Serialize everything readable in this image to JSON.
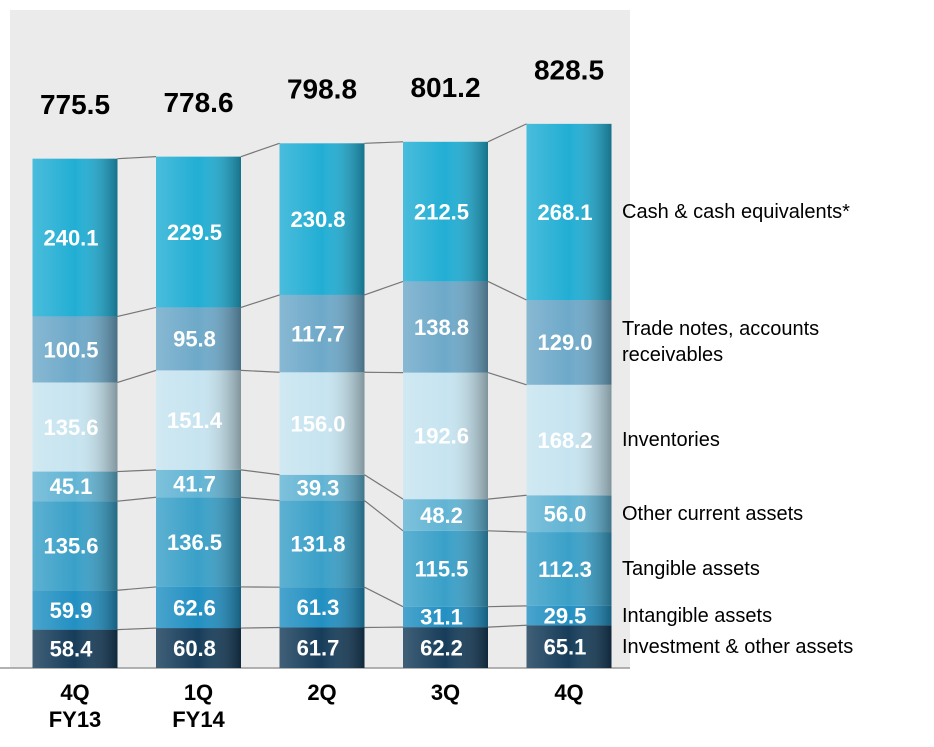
{
  "chart_data": {
    "type": "stacked-bar",
    "categories": [
      "4Q FY13",
      "1Q FY14",
      "2Q",
      "3Q",
      "4Q"
    ],
    "totals": [
      775.5,
      778.6,
      798.8,
      801.2,
      828.5
    ],
    "ylim": [
      0,
      1000
    ],
    "series": [
      {
        "name": "Investment & other assets",
        "color": "#173d5a",
        "values": [
          58.4,
          60.8,
          61.7,
          62.2,
          65.1
        ],
        "value_labels": [
          "58.4",
          "60.8",
          "61.7",
          "62.2",
          "65.1"
        ]
      },
      {
        "name": "Intangible assets",
        "color": "#2290c2",
        "values": [
          59.9,
          62.6,
          61.3,
          31.1,
          29.5
        ],
        "value_labels": [
          "59.9",
          "62.6",
          "61.3",
          "31.1",
          "29.5"
        ]
      },
      {
        "name": "Tangible assets",
        "color": "#3aa0c8",
        "values": [
          135.6,
          136.5,
          131.8,
          115.5,
          112.3
        ],
        "value_labels": [
          "135.6",
          "136.5",
          "131.8",
          "115.5",
          "112.3"
        ]
      },
      {
        "name": "Other current assets",
        "color": "#62b4d4",
        "values": [
          45.1,
          41.7,
          39.3,
          48.2,
          56.0
        ],
        "value_labels": [
          "45.1",
          "41.7",
          "39.3",
          "48.2",
          "56.0"
        ]
      },
      {
        "name": "Inventories",
        "color": "#c6e4f0",
        "values": [
          135.6,
          151.4,
          156.0,
          192.6,
          168.2
        ],
        "value_labels": [
          "135.6",
          "151.4",
          "156.0",
          "192.6",
          "168.2"
        ]
      },
      {
        "name": "Trade notes, accounts receivables",
        "color": "#6ea9c9",
        "values": [
          100.5,
          95.8,
          117.7,
          138.8,
          129.0
        ],
        "value_labels": [
          "100.5",
          "95.8",
          "117.7",
          "138.8",
          "129.0"
        ]
      },
      {
        "name": "Cash & cash equivalents*",
        "color": "#22aed4",
        "values": [
          240.1,
          229.5,
          230.8,
          212.5,
          268.1
        ],
        "value_labels": [
          "240.1",
          "229.5",
          "230.8",
          "212.5",
          "268.1"
        ]
      }
    ]
  }
}
